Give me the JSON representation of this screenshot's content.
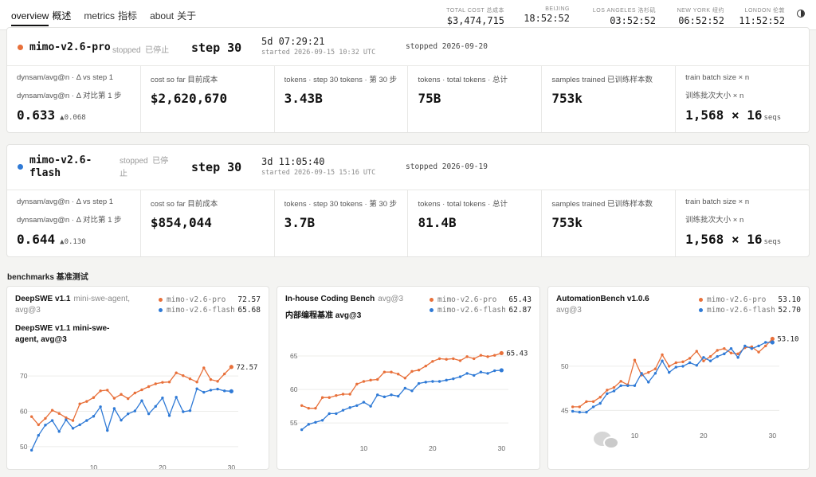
{
  "nav": [
    {
      "en": "overview",
      "zh": "概述"
    },
    {
      "en": "metrics",
      "zh": "指标"
    },
    {
      "en": "about",
      "zh": "关于"
    }
  ],
  "header_stats": {
    "total_cost": {
      "label": "TOTAL COST  总成本",
      "value": "$3,474,715"
    },
    "beijing": {
      "label": "BEIJING",
      "value": "18:52:52"
    },
    "los_angeles": {
      "label": "LOS ANGELES  洛杉矶",
      "value": "03:52:52"
    },
    "new_york": {
      "label": "NEW YORK  纽约",
      "value": "06:52:52"
    },
    "london": {
      "label": "LONDON  伦敦",
      "value": "11:52:52"
    }
  },
  "runs": [
    {
      "name": "mimo-v2.6-pro",
      "color": "#e8703a",
      "status": "stopped  已停止",
      "step": "step 30",
      "elapsed": "5d 07:29:21",
      "started": "started 2026-09-15 10:32 UTC",
      "stopped": "stopped 2026-09-20",
      "metrics": {
        "dynsam": {
          "label1": "dynsam/avg@n · Δ vs step 1",
          "label2": "dynsam/avg@n · Δ 对比第 1 步",
          "value": "0.633",
          "delta": "▲0.068"
        },
        "cost": {
          "label": "cost so far  目前成本",
          "value": "$2,620,670"
        },
        "tokens_step": {
          "label": "tokens · step 30  tokens · 第 30 步",
          "value": "3.43B"
        },
        "tokens_total": {
          "label": "tokens · total  tokens · 总计",
          "value": "75B"
        },
        "samples": {
          "label": "samples trained  已训练样本数",
          "value": "753k"
        },
        "batch": {
          "label1": "train batch size × n",
          "label2": "训练批次大小 × n",
          "value": "1,568 × 16",
          "unit": "seqs"
        }
      }
    },
    {
      "name_line1": "mimo-v2.6-",
      "name_line2": "flash",
      "color": "#2f7ad6",
      "status_line1": "stopped  已停",
      "status_line2": "止",
      "step": "step 30",
      "elapsed": "3d 11:05:40",
      "started": "started 2026-09-15 15:16 UTC",
      "stopped": "stopped 2026-09-19",
      "metrics": {
        "dynsam": {
          "label1": "dynsam/avg@n · Δ vs step 1",
          "label2": "dynsam/avg@n · Δ 对比第 1 步",
          "value": "0.644",
          "delta": "▲0.130"
        },
        "cost": {
          "label": "cost so far  目前成本",
          "value": "$854,044"
        },
        "tokens_step": {
          "label": "tokens · step 30  tokens · 第 30 步",
          "value": "3.7B"
        },
        "tokens_total": {
          "label": "tokens · total  tokens · 总计",
          "value": "81.4B"
        },
        "samples": {
          "label": "samples trained  已训练样本数",
          "value": "753k"
        },
        "batch": {
          "label1": "train batch size × n",
          "label2": "训练批次大小 × n",
          "value": "1,568 × 16",
          "unit": "seqs"
        }
      }
    }
  ],
  "benchmarks_title": "benchmarks  基准测试",
  "colors": {
    "pro": "#e8703a",
    "flash": "#2f7ad6"
  },
  "benchmarks": [
    {
      "title": "DeepSWE v1.1",
      "subtitle": "mini-swe-agent,",
      "subtitle2": "avg@3",
      "chart_title_1": "DeepSWE v1.1 mini-swe-",
      "chart_title_2": "agent, avg@3",
      "legend": [
        {
          "name": "mimo-v2.6-pro",
          "value": "72.57"
        },
        {
          "name": "mimo-v2.6-flash",
          "value": "65.68"
        }
      ],
      "end_label": "72.57"
    },
    {
      "title": "In-house Coding Bench",
      "subtitle": "avg@3",
      "chart_title_1": "内部编程基准 avg@3",
      "legend": [
        {
          "name": "mimo-v2.6-pro",
          "value": "65.43"
        },
        {
          "name": "mimo-v2.6-flash",
          "value": "62.87"
        }
      ],
      "end_label": "65.43"
    },
    {
      "title": "AutomationBench v1.0.6",
      "subtitle2": "avg@3",
      "legend": [
        {
          "name": "mimo-v2.6-pro",
          "value": "53.10"
        },
        {
          "name": "mimo-v2.6-flash",
          "value": "52.70"
        }
      ],
      "end_label": "53.10"
    }
  ],
  "chart_data": [
    {
      "type": "line",
      "x": [
        1,
        2,
        3,
        4,
        5,
        6,
        7,
        8,
        9,
        10,
        11,
        12,
        13,
        14,
        15,
        16,
        17,
        18,
        19,
        20,
        21,
        22,
        23,
        24,
        25,
        26,
        27,
        28,
        29,
        30
      ],
      "xticks": [
        10,
        20,
        30
      ],
      "yticks": [
        50,
        60,
        70
      ],
      "ylim": [
        47.5,
        75
      ],
      "xlim": [
        0,
        31
      ],
      "series": [
        {
          "name": "mimo-v2.6-pro",
          "values": [
            58.5,
            56.2,
            58.0,
            60.3,
            59.4,
            58.2,
            57.4,
            62.1,
            62.8,
            63.9,
            65.8,
            66.0,
            63.7,
            64.8,
            63.6,
            65.2,
            66.1,
            67.0,
            67.8,
            68.2,
            68.3,
            70.9,
            70.1,
            69.2,
            68.3,
            72.3,
            69.0,
            68.5,
            70.6,
            72.57
          ]
        },
        {
          "name": "mimo-v2.6-flash",
          "values": [
            49.0,
            53.2,
            56.1,
            57.4,
            54.3,
            57.6,
            55.2,
            56.2,
            57.4,
            58.6,
            61.3,
            54.6,
            60.8,
            57.5,
            59.3,
            60.1,
            63.0,
            59.3,
            61.4,
            63.8,
            58.8,
            64.0,
            59.9,
            60.2,
            66.4,
            65.4,
            66.0,
            66.3,
            65.8,
            65.68
          ]
        }
      ]
    },
    {
      "type": "line",
      "x": [
        1,
        2,
        3,
        4,
        5,
        6,
        7,
        8,
        9,
        10,
        11,
        12,
        13,
        14,
        15,
        16,
        17,
        18,
        19,
        20,
        21,
        22,
        23,
        24,
        25,
        26,
        27,
        28,
        29,
        30
      ],
      "xticks": [
        10,
        20,
        30
      ],
      "yticks": [
        55,
        60,
        65
      ],
      "ylim": [
        53,
        67.5
      ],
      "xlim": [
        0,
        31
      ],
      "series": [
        {
          "name": "mimo-v2.6-pro",
          "values": [
            57.6,
            57.2,
            57.2,
            58.8,
            58.8,
            59.1,
            59.3,
            59.3,
            60.8,
            61.2,
            61.4,
            61.5,
            62.6,
            62.6,
            62.3,
            61.7,
            62.7,
            62.9,
            63.5,
            64.2,
            64.6,
            64.5,
            64.6,
            64.3,
            64.9,
            64.6,
            65.1,
            64.9,
            65.1,
            65.43
          ]
        },
        {
          "name": "mimo-v2.6-flash",
          "values": [
            54.0,
            54.8,
            55.1,
            55.4,
            56.4,
            56.4,
            56.9,
            57.3,
            57.6,
            58.1,
            57.5,
            59.2,
            58.9,
            59.2,
            59.0,
            60.2,
            59.8,
            60.9,
            61.1,
            61.2,
            61.2,
            61.4,
            61.6,
            61.9,
            62.4,
            62.1,
            62.6,
            62.4,
            62.8,
            62.87
          ]
        }
      ]
    },
    {
      "type": "line",
      "x": [
        1,
        2,
        3,
        4,
        5,
        6,
        7,
        8,
        9,
        10,
        11,
        12,
        13,
        14,
        15,
        16,
        17,
        18,
        19,
        20,
        21,
        22,
        23,
        24,
        25,
        26,
        27,
        28,
        29,
        30
      ],
      "xticks": [
        10,
        20,
        30
      ],
      "yticks": [
        45,
        50
      ],
      "ylim": [
        43.5,
        54.5
      ],
      "xlim": [
        0,
        31
      ],
      "series": [
        {
          "name": "mimo-v2.6-pro",
          "values": [
            45.4,
            45.4,
            46.0,
            46.0,
            46.5,
            47.3,
            47.6,
            48.3,
            47.9,
            50.7,
            49.0,
            49.3,
            49.7,
            51.3,
            50.0,
            50.4,
            50.5,
            50.9,
            51.7,
            50.6,
            51.1,
            51.8,
            52.0,
            51.5,
            51.4,
            52.1,
            52.2,
            51.6,
            52.3,
            53.1
          ]
        },
        {
          "name": "mimo-v2.6-flash",
          "values": [
            44.9,
            44.8,
            44.8,
            45.4,
            45.8,
            46.9,
            47.2,
            47.8,
            47.8,
            47.8,
            49.2,
            48.2,
            49.2,
            50.6,
            49.3,
            49.9,
            50.0,
            50.4,
            50.1,
            51.0,
            50.6,
            51.1,
            51.4,
            52.0,
            51.0,
            52.3,
            52.0,
            52.3,
            52.7,
            52.7
          ]
        }
      ]
    }
  ]
}
